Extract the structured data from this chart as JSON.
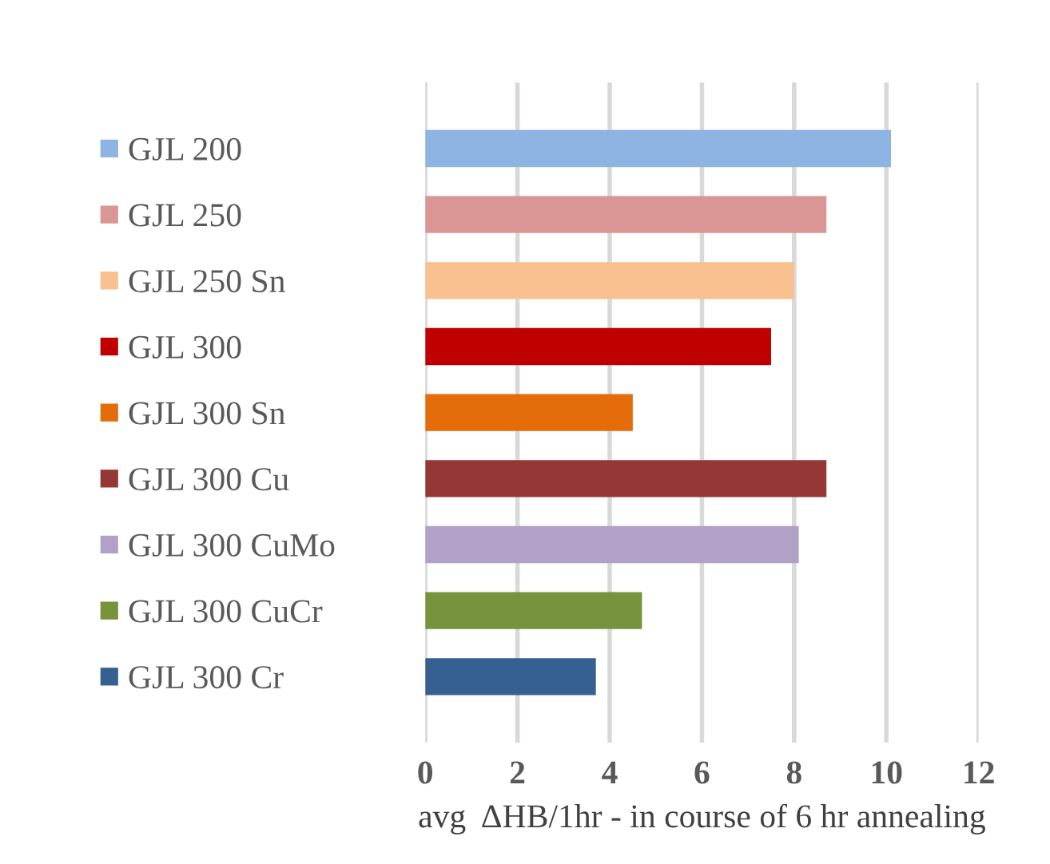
{
  "chart_data": {
    "type": "bar",
    "orientation": "horizontal",
    "categories": [
      "GJL 200",
      "GJL 250",
      "GJL 250 Sn",
      "GJL 300",
      "GJL 300 Sn",
      "GJL 300 Cu",
      "GJL 300 CuMo",
      "GJL 300 CuCr",
      "GJL 300 Cr"
    ],
    "values": [
      10.1,
      8.7,
      8.0,
      7.5,
      4.5,
      8.7,
      8.1,
      4.7,
      3.7
    ],
    "colors": [
      "#8eb4e3",
      "#d99694",
      "#f9c090",
      "#c00000",
      "#e46c0a",
      "#953735",
      "#b2a1c7",
      "#77933c",
      "#366092"
    ],
    "xlim": [
      0,
      12
    ],
    "xticks": [
      0,
      2,
      4,
      6,
      8,
      10,
      12
    ],
    "xlabel": "avg  ΔHB/1hr - in course of 6 hr annealing",
    "grid": "x"
  }
}
